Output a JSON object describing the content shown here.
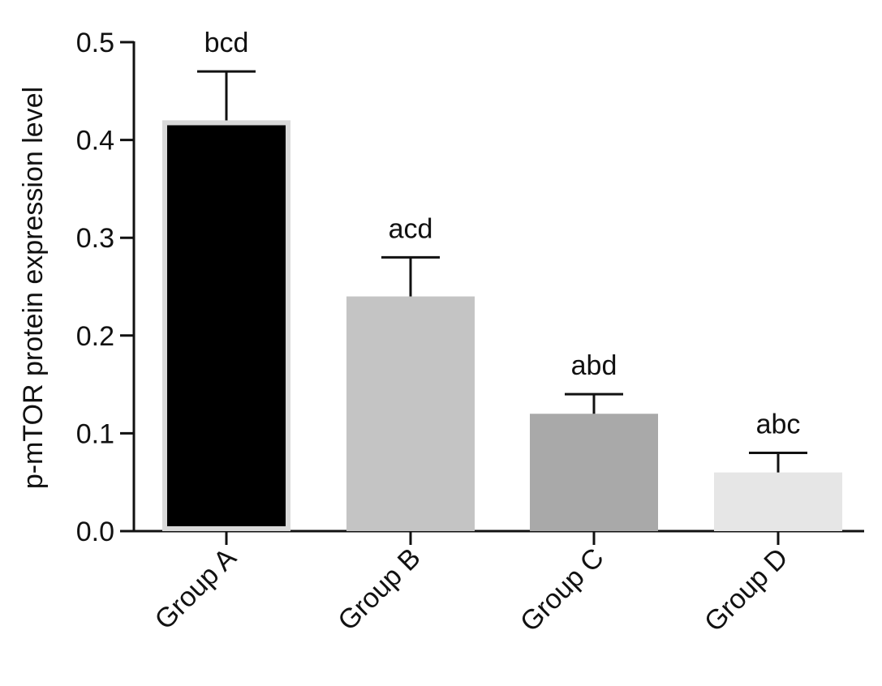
{
  "chart_data": {
    "type": "bar",
    "title": "",
    "xlabel": "",
    "ylabel": "p-mTOR protein expression level",
    "categories": [
      "Group A",
      "Group B",
      "Group C",
      "Group D"
    ],
    "values": [
      0.42,
      0.24,
      0.12,
      0.06
    ],
    "errors": [
      0.05,
      0.04,
      0.02,
      0.02
    ],
    "annotations": [
      "bcd",
      "acd",
      "abd",
      "abc"
    ],
    "colors": [
      "#000000",
      "#c4c4c4",
      "#a9a9a9",
      "#e6e6e6"
    ],
    "ylim": [
      0,
      0.5
    ],
    "yticks": [
      "0.0",
      "0.1",
      "0.2",
      "0.3",
      "0.4",
      "0.5"
    ],
    "grid": false,
    "legend": "none"
  }
}
